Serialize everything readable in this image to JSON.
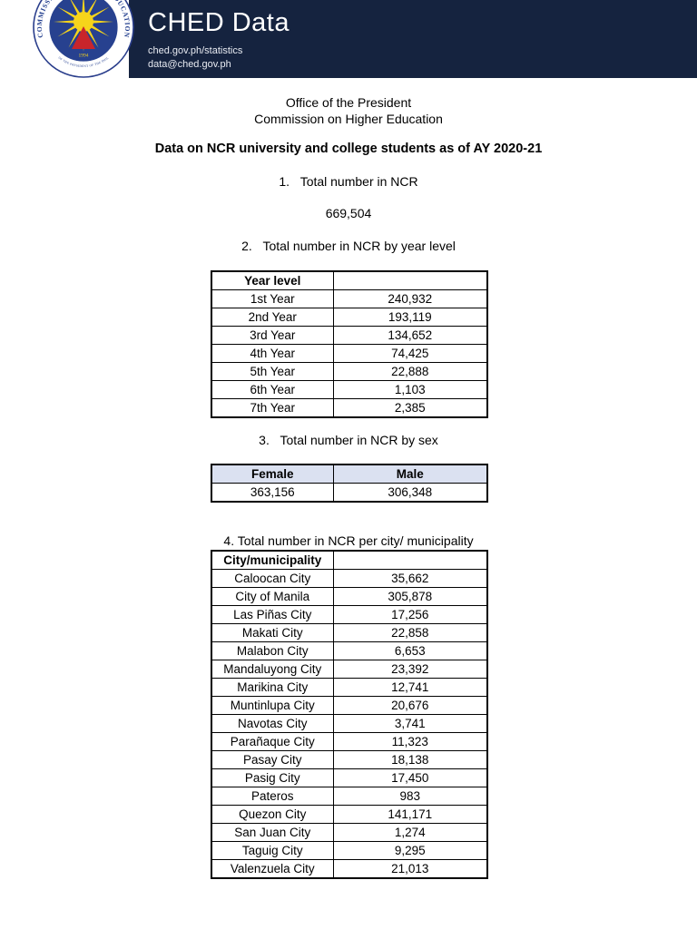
{
  "colors": {
    "banner_navy": "#15233f",
    "table_header_fill": "#dbe1f1",
    "seal_blue": "#27418f",
    "seal_ring_text_blue": "#1d3a8c",
    "seal_yellow": "#f6d41b",
    "seal_red": "#c9252b"
  },
  "banner": {
    "title": "CHED Data",
    "website": "ched.gov.ph/statistics",
    "email": "data@ched.gov.ph",
    "seal": {
      "ring_text": "COMMISSION ON HIGHER EDUCATION",
      "ring_text_bottom": "OFFICE OF THE PRESIDENT OF THE PHILIPPINES",
      "year": "1994"
    }
  },
  "doc": {
    "org_line1": "Office of the President",
    "org_line2": "Commission on Higher Education",
    "title": "Data on NCR university and college students as of AY 2020-21",
    "item1": "1.   Total number in NCR",
    "total_ncr": "669,504",
    "item2": "2.   Total number in NCR by year level",
    "item3": "3.   Total number in NCR by sex",
    "item4": "4. Total number in NCR per city/ municipality",
    "year_table": {
      "header": "Year level",
      "rows": [
        [
          "1st Year",
          "240,932"
        ],
        [
          "2nd Year",
          "193,119"
        ],
        [
          "3rd Year",
          "134,652"
        ],
        [
          "4th Year",
          "74,425"
        ],
        [
          "5th Year",
          "22,888"
        ],
        [
          "6th Year",
          "1,103"
        ],
        [
          "7th Year",
          "2,385"
        ]
      ]
    },
    "sex_table": {
      "headers": [
        "Female",
        "Male"
      ],
      "values": [
        "363,156",
        "306,348"
      ]
    },
    "city_table": {
      "header": "City/municipality",
      "rows": [
        [
          "Caloocan City",
          "35,662"
        ],
        [
          "City of Manila",
          "305,878"
        ],
        [
          "Las Piñas City",
          "17,256"
        ],
        [
          "Makati City",
          "22,858"
        ],
        [
          "Malabon City",
          "6,653"
        ],
        [
          "Mandaluyong City",
          "23,392"
        ],
        [
          "Marikina City",
          "12,741"
        ],
        [
          "Muntinlupa City",
          "20,676"
        ],
        [
          "Navotas City",
          "3,741"
        ],
        [
          "Parañaque City",
          "11,323"
        ],
        [
          "Pasay City",
          "18,138"
        ],
        [
          "Pasig City",
          "17,450"
        ],
        [
          "Pateros",
          "983"
        ],
        [
          "Quezon City",
          "141,171"
        ],
        [
          "San Juan City",
          "1,274"
        ],
        [
          "Taguig City",
          "9,295"
        ],
        [
          "Valenzuela City",
          "21,013"
        ]
      ]
    }
  }
}
